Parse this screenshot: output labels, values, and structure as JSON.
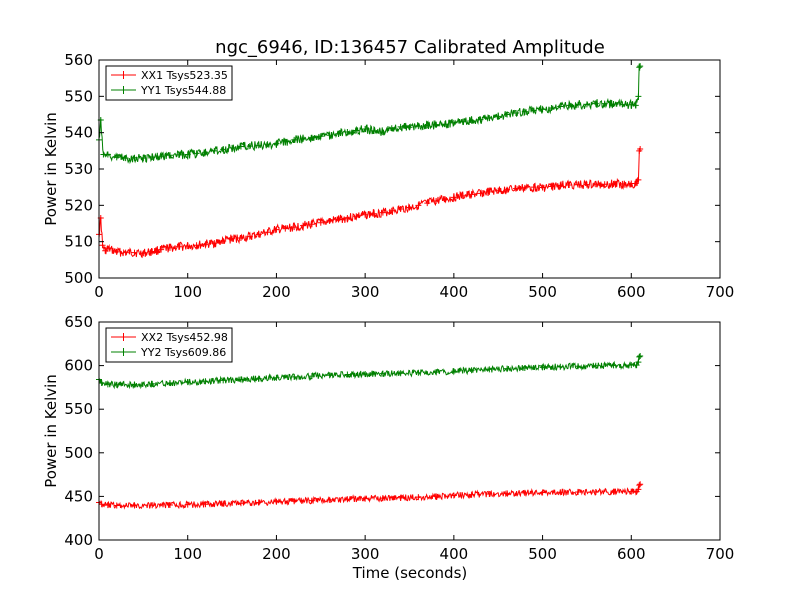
{
  "window": {
    "title": "ngc_6946, ID:136457 Calibrated Amplitude"
  },
  "colors": {
    "red": "#ff0000",
    "green": "#008000",
    "frame": "#000000",
    "background": "#ffffff"
  },
  "chart_data": [
    {
      "type": "line",
      "title": "ngc_6946, ID:136457 Calibrated Amplitude",
      "xlabel": "",
      "ylabel": "Power in Kelvin",
      "xlim": [
        0,
        700
      ],
      "ylim": [
        500,
        560
      ],
      "xticks": [
        "0",
        "100",
        "200",
        "300",
        "400",
        "500",
        "600",
        "700"
      ],
      "yticks": [
        "500",
        "510",
        "520",
        "530",
        "540",
        "550",
        "560"
      ],
      "grid": false,
      "legend_position": "top-left",
      "series": [
        {
          "name": "XX1 Tsys523.35",
          "color": "#ff0000",
          "x": [
            0,
            2,
            4,
            7,
            10,
            20,
            30,
            40,
            50,
            60,
            70,
            80,
            90,
            100,
            110,
            120,
            130,
            140,
            150,
            160,
            170,
            180,
            190,
            200,
            210,
            220,
            230,
            240,
            250,
            260,
            270,
            280,
            290,
            300,
            310,
            320,
            330,
            340,
            350,
            360,
            370,
            380,
            390,
            400,
            410,
            420,
            430,
            440,
            450,
            460,
            470,
            480,
            490,
            500,
            510,
            520,
            530,
            540,
            550,
            560,
            570,
            580,
            590,
            600,
            605,
            608,
            609,
            610
          ],
          "y": [
            512,
            516.5,
            509,
            507.5,
            508,
            507.2,
            507,
            507,
            506.8,
            507.3,
            507.8,
            508.3,
            508.6,
            508.8,
            509,
            509.3,
            509.6,
            510.2,
            510.8,
            511,
            511.4,
            512,
            512.6,
            513.3,
            513.6,
            514,
            514.4,
            514.8,
            515.2,
            515.7,
            516.1,
            516.5,
            517,
            517.4,
            517.7,
            518,
            518.5,
            519,
            519.4,
            520,
            520.6,
            521.2,
            521.7,
            522.2,
            522.6,
            523,
            523.3,
            523.7,
            524,
            524.3,
            524.6,
            524.8,
            525,
            524.9,
            525.2,
            525.5,
            525.6,
            525.7,
            525.7,
            525.8,
            525.8,
            525.9,
            525.9,
            526,
            526,
            527,
            535,
            535.5
          ]
        },
        {
          "name": "YY1 Tsys544.88",
          "color": "#008000",
          "x": [
            0,
            2,
            5,
            10,
            20,
            30,
            40,
            50,
            60,
            70,
            80,
            90,
            100,
            110,
            120,
            130,
            140,
            150,
            160,
            170,
            180,
            190,
            200,
            210,
            220,
            230,
            240,
            250,
            260,
            270,
            280,
            290,
            300,
            310,
            320,
            330,
            340,
            350,
            360,
            370,
            380,
            390,
            400,
            410,
            420,
            430,
            440,
            450,
            460,
            470,
            480,
            490,
            500,
            510,
            520,
            530,
            540,
            550,
            560,
            570,
            580,
            590,
            600,
            605,
            608,
            609,
            610
          ],
          "y": [
            538,
            543.5,
            534,
            534,
            533.2,
            533,
            533.1,
            533,
            533.3,
            533.5,
            533.8,
            533.9,
            534,
            534.3,
            534.6,
            535,
            535.4,
            535.8,
            536.2,
            536.3,
            536.5,
            536.8,
            537,
            537.5,
            538,
            538.3,
            538.6,
            539,
            539.3,
            539.7,
            540.2,
            540.6,
            541,
            540.5,
            540.2,
            541.2,
            541.6,
            541.5,
            541.8,
            542,
            542.2,
            542.3,
            542.7,
            543,
            543.3,
            543.6,
            544,
            544.5,
            545,
            545.4,
            545.8,
            546.1,
            546.4,
            546.8,
            547.2,
            547.5,
            547.7,
            547.8,
            548,
            548,
            547.9,
            547.8,
            547.7,
            547.5,
            550,
            558,
            558.3
          ]
        }
      ]
    },
    {
      "type": "line",
      "title": "",
      "xlabel": "Time (seconds)",
      "ylabel": "Power in Kelvin",
      "xlim": [
        0,
        700
      ],
      "ylim": [
        400,
        650
      ],
      "xticks": [
        "0",
        "100",
        "200",
        "300",
        "400",
        "500",
        "600",
        "700"
      ],
      "yticks": [
        "400",
        "450",
        "500",
        "550",
        "600",
        "650"
      ],
      "grid": false,
      "legend_position": "top-left",
      "series": [
        {
          "name": "XX2 Tsys452.98",
          "color": "#ff0000",
          "x": [
            0,
            3,
            10,
            20,
            40,
            60,
            80,
            100,
            120,
            140,
            160,
            180,
            200,
            220,
            240,
            260,
            280,
            300,
            320,
            340,
            360,
            380,
            400,
            420,
            440,
            460,
            480,
            500,
            520,
            540,
            560,
            580,
            600,
            606,
            608,
            609,
            610
          ],
          "y": [
            443,
            441,
            440,
            439.5,
            439.5,
            439.8,
            440.2,
            440.5,
            441,
            441.5,
            442.2,
            443,
            443.8,
            444.5,
            445.2,
            446,
            446.8,
            447.5,
            448,
            448.5,
            449.2,
            450,
            451,
            452,
            452.8,
            453.4,
            454,
            454.5,
            454.8,
            455,
            455.1,
            455.3,
            455.5,
            455.5,
            458,
            463,
            464
          ]
        },
        {
          "name": "YY2 Tsys609.86",
          "color": "#008000",
          "x": [
            0,
            3,
            10,
            20,
            40,
            60,
            80,
            100,
            120,
            140,
            160,
            180,
            200,
            220,
            240,
            260,
            280,
            300,
            320,
            340,
            360,
            380,
            400,
            420,
            440,
            460,
            480,
            500,
            520,
            540,
            560,
            580,
            600,
            606,
            608,
            609,
            610
          ],
          "y": [
            584,
            580,
            578.5,
            578,
            578.3,
            579,
            580,
            581,
            582,
            583,
            584,
            585,
            586,
            587,
            588,
            589,
            589.8,
            590.4,
            590.8,
            591.2,
            591.8,
            592.5,
            593.5,
            594.6,
            595.6,
            596.5,
            597.3,
            598,
            598.7,
            599.3,
            599.8,
            600.2,
            600.5,
            600.6,
            604,
            610,
            611
          ]
        }
      ]
    }
  ]
}
